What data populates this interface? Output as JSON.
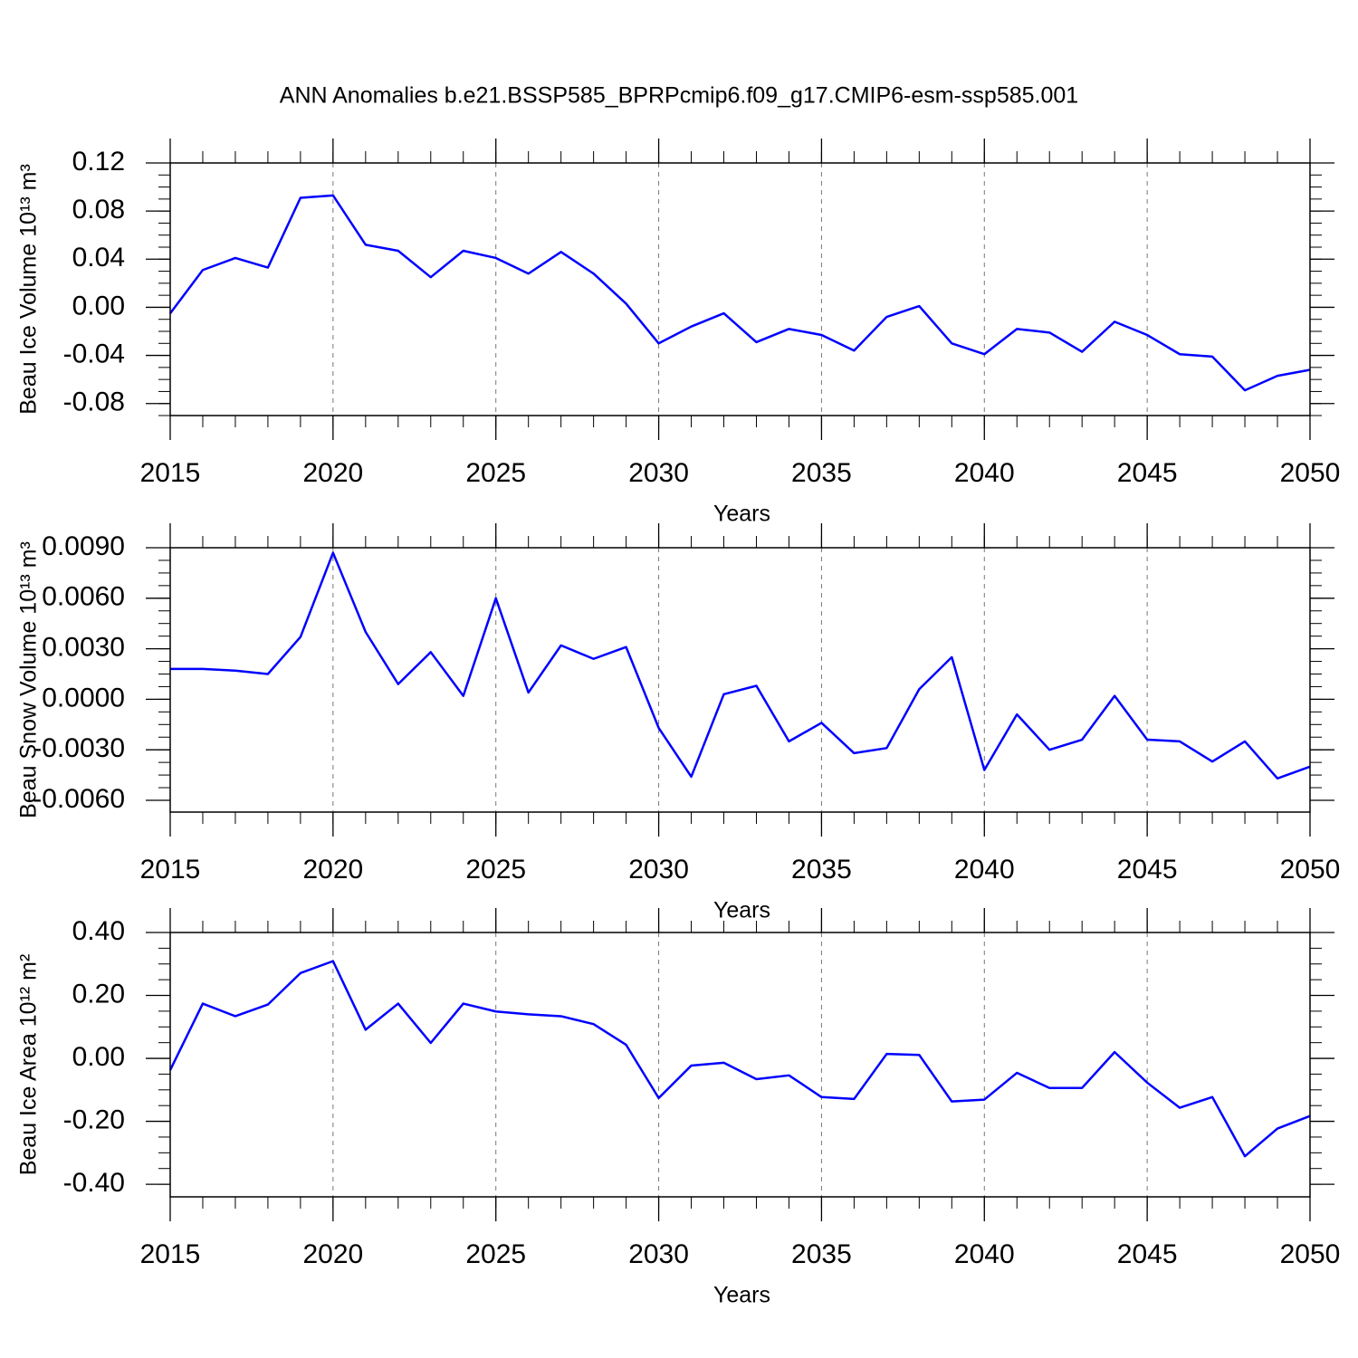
{
  "chart_data": [
    {
      "type": "line",
      "title": "ANN Anomalies b.e21.BSSP585_BPRPcmip6.f09_g17.CMIP6-esm-ssp585.001",
      "xlabel": "Years",
      "ylabel": "Beau Ice Volume 10¹³ m³",
      "color": "#0000ff",
      "grid": "x",
      "x": [
        2015,
        2016,
        2017,
        2018,
        2019,
        2020,
        2021,
        2022,
        2023,
        2024,
        2025,
        2026,
        2027,
        2028,
        2029,
        2030,
        2031,
        2032,
        2033,
        2034,
        2035,
        2036,
        2037,
        2038,
        2039,
        2040,
        2041,
        2042,
        2043,
        2044,
        2045,
        2046,
        2047,
        2048,
        2049,
        2050
      ],
      "values": [
        -0.005,
        0.031,
        0.041,
        0.033,
        0.091,
        0.093,
        0.052,
        0.047,
        0.025,
        0.047,
        0.041,
        0.028,
        0.046,
        0.028,
        0.003,
        -0.03,
        -0.016,
        -0.005,
        -0.029,
        -0.018,
        -0.023,
        -0.036,
        -0.008,
        0.001,
        -0.03,
        -0.039,
        -0.018,
        -0.021,
        -0.037,
        -0.012,
        -0.023,
        -0.039,
        -0.041,
        -0.069,
        -0.057,
        -0.052
      ],
      "xlim": [
        2015,
        2050
      ],
      "xticks": [
        2015,
        2020,
        2025,
        2030,
        2035,
        2040,
        2045,
        2050
      ],
      "ylim": [
        -0.09,
        0.12
      ],
      "yticks": [
        0.12,
        0.08,
        0.04,
        {
          "value": 0,
          "label": "0.00"
        },
        -0.04,
        -0.08
      ]
    },
    {
      "type": "line",
      "xlabel": "Years",
      "ylabel": "Beau Snow Volume 10¹³ m³",
      "color": "#0000ff",
      "grid": "x",
      "x": [
        2015,
        2016,
        2017,
        2018,
        2019,
        2020,
        2021,
        2022,
        2023,
        2024,
        2025,
        2026,
        2027,
        2028,
        2029,
        2030,
        2031,
        2032,
        2033,
        2034,
        2035,
        2036,
        2037,
        2038,
        2039,
        2040,
        2041,
        2042,
        2043,
        2044,
        2045,
        2046,
        2047,
        2048,
        2049,
        2050
      ],
      "values": [
        0.0018,
        0.0018,
        0.0017,
        0.0015,
        0.0037,
        0.0087,
        0.004,
        0.0009,
        0.0028,
        0.0002,
        0.006,
        0.0004,
        0.0032,
        0.0024,
        0.0031,
        -0.0017,
        -0.0046,
        0.0003,
        0.0008,
        -0.0025,
        -0.0014,
        -0.0032,
        -0.0029,
        0.0006,
        0.0025,
        -0.0042,
        -0.0009,
        -0.003,
        -0.0024,
        0.0002,
        -0.0024,
        -0.0025,
        -0.0037,
        -0.0025,
        -0.0047,
        -0.004
      ],
      "xlim": [
        2015,
        2050
      ],
      "xticks": [
        2015,
        2020,
        2025,
        2030,
        2035,
        2040,
        2045,
        2050
      ],
      "ylim": [
        -0.0067,
        0.009
      ],
      "yticks": [
        {
          "value": 0.009,
          "label": "0.0090"
        },
        {
          "value": 0.006,
          "label": "0.0060"
        },
        {
          "value": 0.003,
          "label": "0.0030"
        },
        {
          "value": 0,
          "label": "0.0000"
        },
        {
          "value": -0.003,
          "label": "-0.0030"
        },
        {
          "value": -0.006,
          "label": "-0.0060"
        }
      ]
    },
    {
      "type": "line",
      "xlabel": "Years",
      "ylabel": "Beau Ice Area 10¹² m²",
      "color": "#0000ff",
      "grid": "x",
      "x": [
        2015,
        2016,
        2017,
        2018,
        2019,
        2020,
        2021,
        2022,
        2023,
        2024,
        2025,
        2026,
        2027,
        2028,
        2029,
        2030,
        2031,
        2032,
        2033,
        2034,
        2035,
        2036,
        2037,
        2038,
        2039,
        2040,
        2041,
        2042,
        2043,
        2044,
        2045,
        2046,
        2047,
        2048,
        2049,
        2050
      ],
      "values": [
        -0.037,
        0.174,
        0.134,
        0.171,
        0.271,
        0.309,
        0.091,
        0.174,
        0.049,
        0.174,
        0.149,
        0.14,
        0.134,
        0.109,
        0.043,
        -0.126,
        -0.023,
        -0.014,
        -0.066,
        -0.054,
        -0.123,
        -0.129,
        0.014,
        0.011,
        -0.137,
        -0.131,
        -0.046,
        -0.094,
        -0.094,
        0.02,
        -0.077,
        -0.157,
        -0.123,
        -0.311,
        -0.223,
        -0.183
      ],
      "xlim": [
        2015,
        2050
      ],
      "xticks": [
        2015,
        2020,
        2025,
        2030,
        2035,
        2040,
        2045,
        2050
      ],
      "ylim": [
        -0.44,
        0.4
      ],
      "yticks": [
        {
          "value": 0.4,
          "label": "0.40"
        },
        {
          "value": 0.2,
          "label": "0.20"
        },
        {
          "value": 0,
          "label": "0.00"
        },
        {
          "value": -0.2,
          "label": "-0.20"
        },
        {
          "value": -0.4,
          "label": "-0.40"
        }
      ]
    }
  ]
}
